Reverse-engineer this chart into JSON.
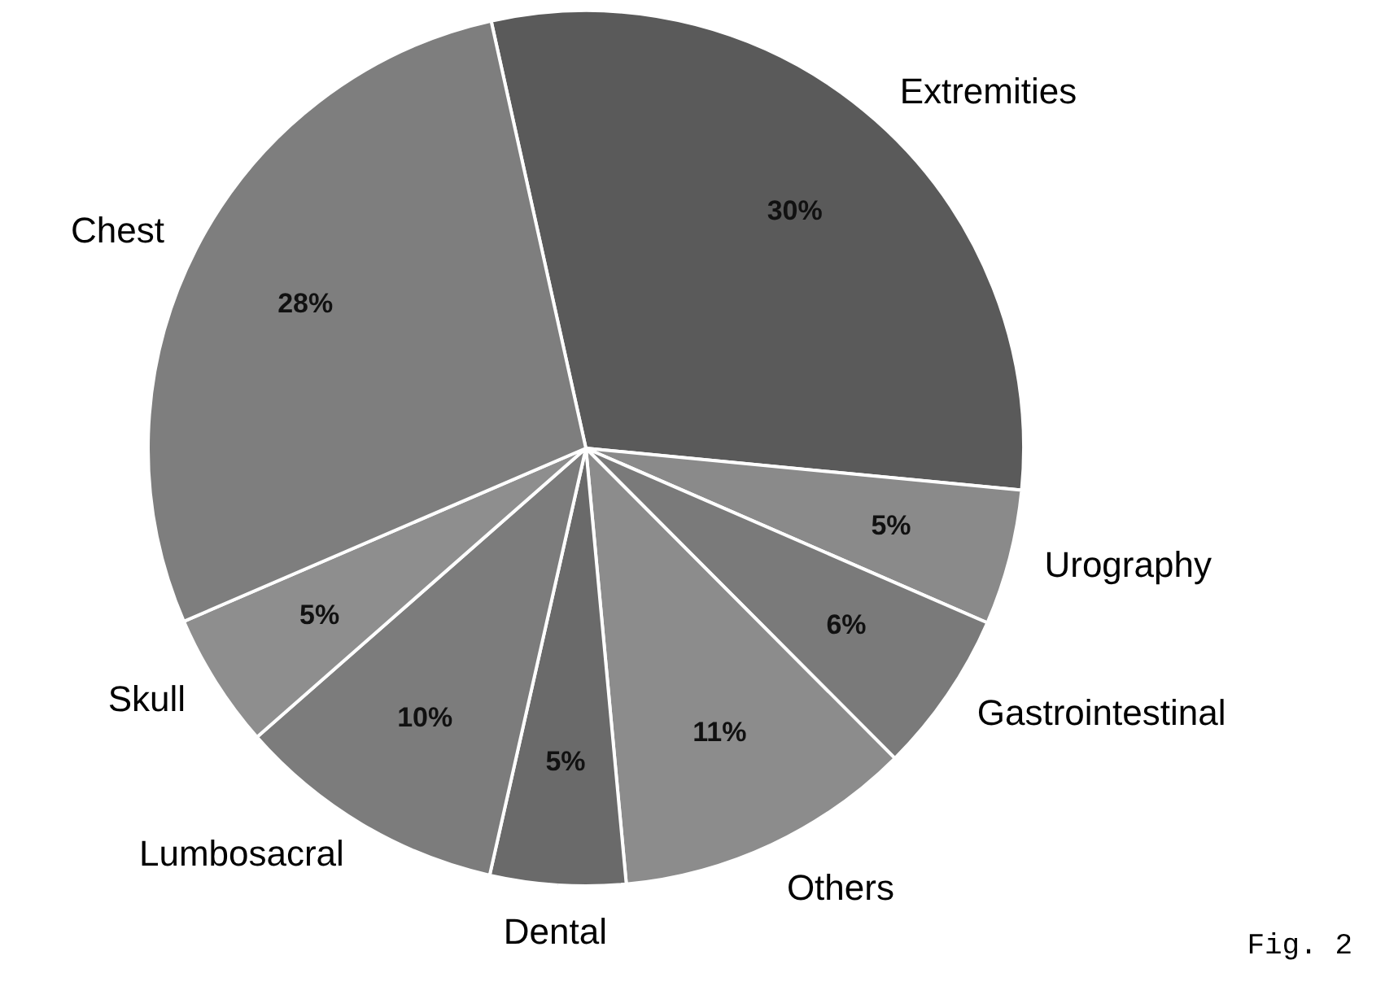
{
  "chart_data": {
    "type": "pie",
    "categories": [
      "Extremities",
      "Urography",
      "Gastrointestinal",
      "Others",
      "Dental",
      "Lumbosacral",
      "Skull",
      "Chest"
    ],
    "values": [
      30,
      5,
      6,
      11,
      5,
      10,
      5,
      28
    ],
    "colors": [
      "#5a5a5a",
      "#8a8a8a",
      "#7a7a7a",
      "#8c8c8c",
      "#6a6a6a",
      "#7c7c7c",
      "#8e8e8e",
      "#7e7e7e"
    ],
    "value_labels": [
      "30%",
      "5%",
      "6%",
      "11%",
      "5%",
      "10%",
      "5%",
      "28%"
    ],
    "annotations": [
      "Fig. 2"
    ]
  }
}
